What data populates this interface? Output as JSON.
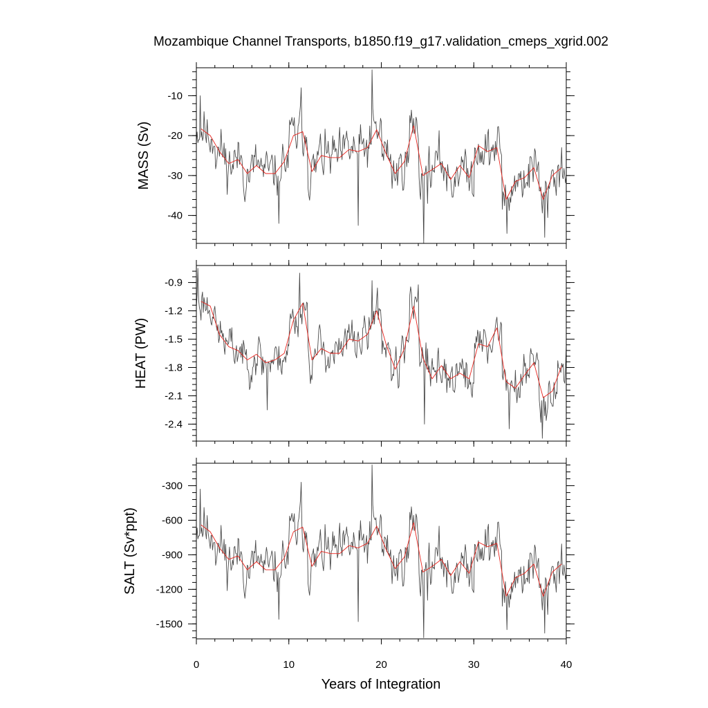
{
  "chart_data": {
    "type": "line",
    "title": "Mozambique Channel Transports, b1850.f19_g17.validation_cmeps_xgrid.002",
    "xlabel": "Years of Integration",
    "xlim": [
      0,
      40
    ],
    "xticks": [
      0,
      10,
      20,
      30,
      40
    ],
    "xtick_labels": [
      "0",
      "10",
      "20",
      "30",
      "40"
    ],
    "colors": {
      "raw": "#4a4a4a",
      "annual_mean": "#e8221b",
      "axes": "#000000"
    },
    "panels": [
      {
        "name": "mass",
        "ylabel": "MASS (Sv)",
        "ylim": [
          -47,
          -3
        ],
        "yticks": [
          -10,
          -20,
          -30,
          -40
        ],
        "ytick_labels": [
          "-10",
          "-20",
          "-30",
          "-40"
        ],
        "series": [
          {
            "name": "annual mean",
            "x": [
              0.5,
              1.5,
              2.5,
              3.5,
              4.5,
              5.5,
              6.5,
              7.5,
              8.5,
              9.5,
              10.5,
              11.5,
              12.5,
              13.5,
              14.5,
              15.5,
              16.5,
              17.5,
              18.5,
              19.5,
              20.5,
              21.5,
              22.5,
              23.5,
              24.5,
              25.5,
              26.5,
              27.5,
              28.5,
              29.5,
              30.5,
              31.5,
              32.5,
              33.5,
              34.5,
              35.5,
              36.5,
              37.5,
              38.5,
              39.5
            ],
            "values": [
              -18.3,
              -20.0,
              -24.0,
              -27.0,
              -26.0,
              -29.5,
              -27.5,
              -29.5,
              -29.5,
              -26.5,
              -20.0,
              -19.0,
              -29.0,
              -25.0,
              -25.5,
              -25.5,
              -23.5,
              -24.0,
              -23.0,
              -18.5,
              -24.5,
              -29.5,
              -26.5,
              -17.5,
              -30.0,
              -28.5,
              -27.0,
              -31.0,
              -27.5,
              -30.5,
              -22.5,
              -24.0,
              -23.0,
              -36.0,
              -31.5,
              -30.5,
              -28.0,
              -36.0,
              -30.0,
              -28.0
            ]
          },
          {
            "name": "monthly",
            "x0": 0,
            "dx": 0.0833333,
            "base": [
              -18.3,
              -20.0,
              -24.0,
              -27.0,
              -26.0,
              -29.5,
              -27.5,
              -29.5,
              -29.5,
              -26.5,
              -20.0,
              -19.0,
              -29.0,
              -25.0,
              -25.5,
              -25.5,
              -23.5,
              -24.0,
              -23.0,
              -18.5,
              -24.5,
              -29.5,
              -26.5,
              -17.5,
              -30.0,
              -28.5,
              -27.0,
              -31.0,
              -27.5,
              -30.5,
              -22.5,
              -24.0,
              -23.0,
              -36.0,
              -31.5,
              -30.5,
              -28.0,
              -36.0,
              -30.0,
              -28.0
            ],
            "noise_amplitude": 6.0,
            "seed": 11,
            "extremes": [
              [
                0.4,
                -10.0
              ],
              [
                8.9,
                -42.0
              ],
              [
                11.3,
                -8.0
              ],
              [
                17.5,
                -42.5
              ],
              [
                19.0,
                -3.5
              ],
              [
                24.6,
                -47.0
              ],
              [
                33.6,
                -44.5
              ],
              [
                37.7,
                -45.5
              ]
            ]
          }
        ]
      },
      {
        "name": "heat",
        "ylabel": "HEAT (PW)",
        "ylim": [
          -2.58,
          -0.72
        ],
        "yticks": [
          -0.9,
          -1.2,
          -1.5,
          -1.8,
          -2.1,
          -2.4
        ],
        "ytick_labels": [
          "-0.9",
          "-1.2",
          "-1.5",
          "-1.8",
          "-2.1",
          "-2.4"
        ],
        "series": [
          {
            "name": "annual mean",
            "x": [
              0.5,
              1.5,
              2.5,
              3.5,
              4.5,
              5.5,
              6.5,
              7.5,
              8.5,
              9.5,
              10.5,
              11.5,
              12.5,
              13.5,
              14.5,
              15.5,
              16.5,
              17.5,
              18.5,
              19.5,
              20.5,
              21.5,
              22.5,
              23.5,
              24.5,
              25.5,
              26.5,
              27.5,
              28.5,
              29.5,
              30.5,
              31.5,
              32.5,
              33.5,
              34.5,
              35.5,
              36.5,
              37.5,
              38.5,
              39.5
            ],
            "values": [
              -1.1,
              -1.15,
              -1.45,
              -1.58,
              -1.62,
              -1.72,
              -1.66,
              -1.75,
              -1.72,
              -1.65,
              -1.3,
              -1.12,
              -1.72,
              -1.6,
              -1.65,
              -1.65,
              -1.5,
              -1.52,
              -1.45,
              -1.2,
              -1.55,
              -1.82,
              -1.6,
              -1.15,
              -1.7,
              -1.92,
              -1.78,
              -1.92,
              -1.86,
              -1.92,
              -1.55,
              -1.58,
              -1.38,
              -1.95,
              -2.02,
              -1.88,
              -1.75,
              -2.12,
              -2.05,
              -1.78
            ]
          },
          {
            "name": "monthly",
            "x0": 0,
            "dx": 0.0833333,
            "base": [
              -1.1,
              -1.15,
              -1.45,
              -1.58,
              -1.62,
              -1.72,
              -1.66,
              -1.75,
              -1.72,
              -1.65,
              -1.3,
              -1.12,
              -1.72,
              -1.6,
              -1.65,
              -1.65,
              -1.5,
              -1.52,
              -1.45,
              -1.2,
              -1.55,
              -1.82,
              -1.6,
              -1.15,
              -1.7,
              -1.92,
              -1.78,
              -1.92,
              -1.86,
              -1.92,
              -1.55,
              -1.58,
              -1.38,
              -1.95,
              -2.02,
              -1.88,
              -1.75,
              -2.12,
              -2.05,
              -1.78
            ],
            "noise_amplitude": 0.22,
            "seed": 23,
            "extremes": [
              [
                0.2,
                -0.75
              ],
              [
                7.7,
                -2.25
              ],
              [
                11.2,
                -0.8
              ],
              [
                19.0,
                -0.88
              ],
              [
                24.7,
                -2.4
              ],
              [
                33.8,
                -2.45
              ],
              [
                37.4,
                -2.55
              ]
            ]
          }
        ]
      },
      {
        "name": "salt",
        "ylabel": "SALT (Sv*ppt)",
        "ylim": [
          -1630,
          -105
        ],
        "yticks": [
          -300,
          -600,
          -900,
          -1200,
          -1500
        ],
        "ytick_labels": [
          "-300",
          "-600",
          "-900",
          "-1200",
          "-1500"
        ],
        "series": [
          {
            "name": "annual mean",
            "x": [
              0.5,
              1.5,
              2.5,
              3.5,
              4.5,
              5.5,
              6.5,
              7.5,
              8.5,
              9.5,
              10.5,
              11.5,
              12.5,
              13.5,
              14.5,
              15.5,
              16.5,
              17.5,
              18.5,
              19.5,
              20.5,
              21.5,
              22.5,
              23.5,
              24.5,
              25.5,
              26.5,
              27.5,
              28.5,
              29.5,
              30.5,
              31.5,
              32.5,
              33.5,
              34.5,
              35.5,
              36.5,
              37.5,
              38.5,
              39.5
            ],
            "values": [
              -640,
              -700,
              -840,
              -940,
              -910,
              -1030,
              -960,
              -1030,
              -1030,
              -930,
              -700,
              -660,
              -1000,
              -870,
              -890,
              -890,
              -820,
              -840,
              -800,
              -650,
              -850,
              -1020,
              -920,
              -620,
              -1050,
              -1000,
              -940,
              -1080,
              -960,
              -1060,
              -790,
              -830,
              -800,
              -1260,
              -1100,
              -1060,
              -980,
              -1260,
              -1050,
              -980
            ]
          },
          {
            "name": "monthly",
            "x0": 0,
            "dx": 0.0833333,
            "base": [
              -640,
              -700,
              -840,
              -940,
              -910,
              -1030,
              -960,
              -1030,
              -1030,
              -930,
              -700,
              -660,
              -1000,
              -870,
              -890,
              -890,
              -820,
              -840,
              -800,
              -650,
              -850,
              -1020,
              -920,
              -620,
              -1050,
              -1000,
              -940,
              -1080,
              -960,
              -1060,
              -790,
              -830,
              -800,
              -1260,
              -1100,
              -1060,
              -980,
              -1260,
              -1050,
              -980
            ],
            "noise_amplitude": 210,
            "seed": 11,
            "extremes": [
              [
                0.4,
                -330
              ],
              [
                8.9,
                -1460
              ],
              [
                11.3,
                -270
              ],
              [
                17.5,
                -1480
              ],
              [
                19.0,
                -120
              ],
              [
                24.6,
                -1620
              ],
              [
                33.6,
                -1550
              ],
              [
                37.7,
                -1580
              ]
            ]
          }
        ]
      }
    ]
  }
}
